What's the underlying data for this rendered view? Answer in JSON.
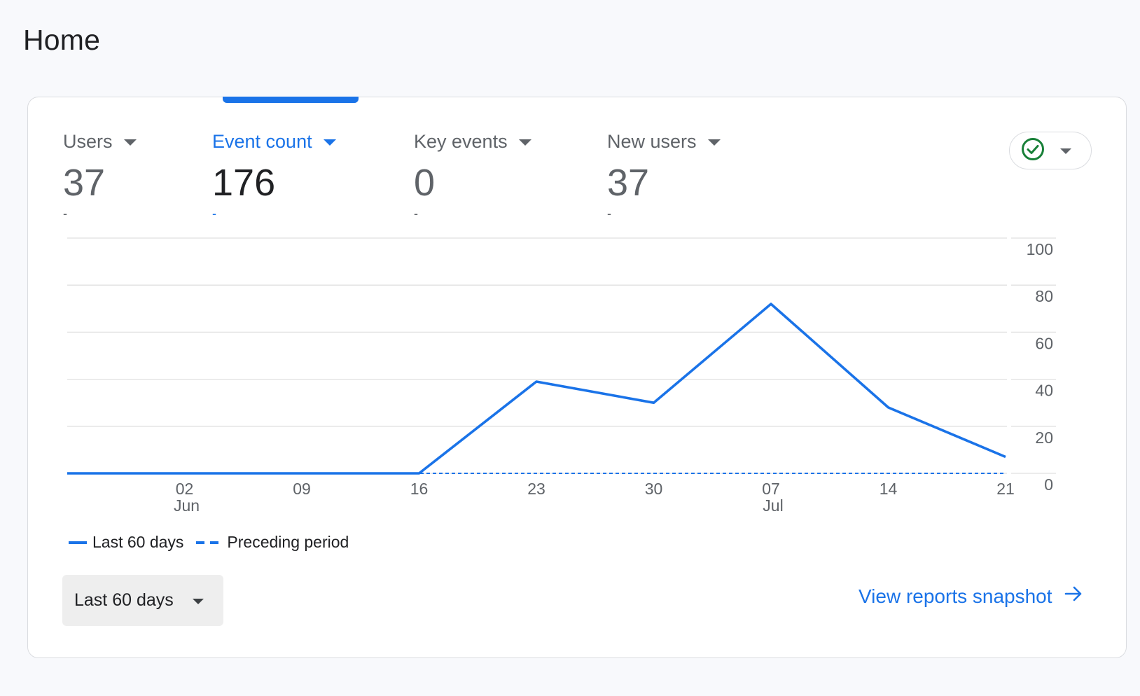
{
  "page": {
    "title": "Home"
  },
  "metrics": [
    {
      "label": "Users",
      "value": "37",
      "change": "-",
      "active": false
    },
    {
      "label": "Event count",
      "value": "176",
      "change": "-",
      "active": true
    },
    {
      "label": "Key events",
      "value": "0",
      "change": "-",
      "active": false
    },
    {
      "label": "New users",
      "value": "37",
      "change": "-",
      "active": false
    }
  ],
  "compare_button": {
    "icon": "check-circle-icon",
    "icon_color": "#188038"
  },
  "legend": {
    "current": "Last 60 days",
    "previous": "Preceding period"
  },
  "date_range": {
    "label": "Last 60 days"
  },
  "snapshot_link": {
    "label": "View reports snapshot",
    "icon": "arrow-right-icon"
  },
  "colors": {
    "accent": "#1a73e8",
    "grid": "#e0e0e0"
  },
  "chart_data": {
    "type": "line",
    "y_axis_position": "right",
    "ylim": [
      0,
      100
    ],
    "y_ticks": [
      0,
      20,
      40,
      60,
      80,
      100
    ],
    "x_ticks": [
      {
        "day": "02",
        "month": "Jun"
      },
      {
        "day": "09",
        "month": ""
      },
      {
        "day": "16",
        "month": ""
      },
      {
        "day": "23",
        "month": ""
      },
      {
        "day": "30",
        "month": ""
      },
      {
        "day": "07",
        "month": "Jul"
      },
      {
        "day": "14",
        "month": ""
      },
      {
        "day": "21",
        "month": ""
      }
    ],
    "grid": true,
    "series": [
      {
        "name": "Last 60 days",
        "style": "solid",
        "points": [
          {
            "x": "2024-05-26",
            "y": 0
          },
          {
            "x": "2024-06-02",
            "y": 0
          },
          {
            "x": "2024-06-09",
            "y": 0
          },
          {
            "x": "2024-06-16",
            "y": 0
          },
          {
            "x": "2024-06-23",
            "y": 39
          },
          {
            "x": "2024-06-30",
            "y": 30
          },
          {
            "x": "2024-07-07",
            "y": 72
          },
          {
            "x": "2024-07-14",
            "y": 28
          },
          {
            "x": "2024-07-21",
            "y": 7
          }
        ]
      },
      {
        "name": "Preceding period",
        "style": "dashed",
        "points": [
          {
            "x": "2024-05-26",
            "y": 0
          },
          {
            "x": "2024-06-02",
            "y": 0
          },
          {
            "x": "2024-06-09",
            "y": 0
          },
          {
            "x": "2024-06-16",
            "y": 0
          },
          {
            "x": "2024-06-23",
            "y": 0
          },
          {
            "x": "2024-06-30",
            "y": 0
          },
          {
            "x": "2024-07-07",
            "y": 0
          },
          {
            "x": "2024-07-14",
            "y": 0
          },
          {
            "x": "2024-07-21",
            "y": 0
          }
        ]
      }
    ]
  }
}
